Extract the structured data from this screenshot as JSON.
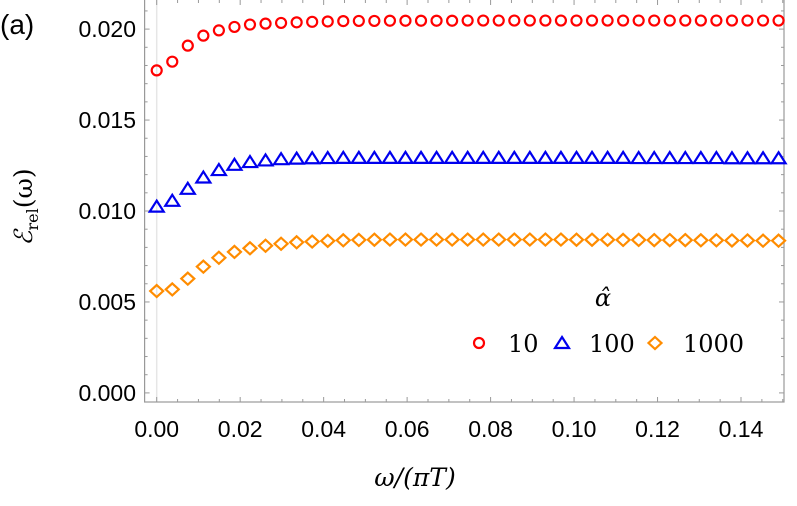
{
  "panel_label": "(a)",
  "chart_data": {
    "type": "scatter",
    "title": "",
    "xlabel": "ω/(πT)",
    "ylabel": "ℰrel(ω)",
    "ylabel_main": "ℰ",
    "ylabel_sub": "rel",
    "ylabel_arg": "(ω)",
    "xlim": [
      -0.0029,
      0.1503
    ],
    "ylim": [
      -0.0005,
      0.0216
    ],
    "grid": false,
    "x_ticks": [
      "0.00",
      "0.02",
      "0.04",
      "0.06",
      "0.08",
      "0.10",
      "0.12",
      "0.14"
    ],
    "y_ticks": [
      "0.000",
      "0.005",
      "0.010",
      "0.015",
      "0.020"
    ],
    "legend": {
      "title": "α̂",
      "placement": "lower-right"
    },
    "x": [
      0,
      0.00373,
      0.00745,
      0.01118,
      0.0149,
      0.01863,
      0.02235,
      0.02608,
      0.0298,
      0.03353,
      0.03725,
      0.04098,
      0.0447,
      0.04843,
      0.05215,
      0.05588,
      0.0596,
      0.06333,
      0.06705,
      0.07078,
      0.0745,
      0.07823,
      0.08195,
      0.08568,
      0.0894,
      0.09313,
      0.09685,
      0.10058,
      0.1043,
      0.10803,
      0.11175,
      0.11548,
      0.1192,
      0.12293,
      0.12665,
      0.13038,
      0.1341,
      0.13783,
      0.14155,
      0.14528,
      0.149
    ],
    "series": [
      {
        "name": "10",
        "marker": "circle",
        "color": "#ff0000",
        "values": [
          0.01773,
          0.01821,
          0.01909,
          0.01964,
          0.01993,
          0.02012,
          0.02025,
          0.0203,
          0.02034,
          0.02037,
          0.0204,
          0.02042,
          0.02044,
          0.02045,
          0.02045,
          0.02046,
          0.02046,
          0.02046,
          0.02046,
          0.02046,
          0.02047,
          0.02047,
          0.02047,
          0.02047,
          0.02047,
          0.02047,
          0.02047,
          0.02047,
          0.02047,
          0.02047,
          0.02047,
          0.02047,
          0.02047,
          0.02047,
          0.02047,
          0.02047,
          0.02047,
          0.02047,
          0.02047,
          0.02047,
          0.02047
        ]
      },
      {
        "name": "100",
        "marker": "triangle",
        "color": "#0000ee",
        "values": [
          0.01024,
          0.01056,
          0.01122,
          0.01184,
          0.01225,
          0.01254,
          0.01269,
          0.01278,
          0.01285,
          0.01288,
          0.0129,
          0.01291,
          0.01292,
          0.01292,
          0.01292,
          0.01292,
          0.01292,
          0.01292,
          0.01292,
          0.01292,
          0.01292,
          0.01292,
          0.01292,
          0.01292,
          0.01292,
          0.01292,
          0.01292,
          0.01292,
          0.01292,
          0.01292,
          0.01292,
          0.01291,
          0.01291,
          0.01291,
          0.01291,
          0.01291,
          0.01291,
          0.0129,
          0.0129,
          0.0129,
          0.0129
        ]
      },
      {
        "name": "1000",
        "marker": "diamond",
        "color": "#ff8c00",
        "values": [
          0.0056,
          0.00569,
          0.00628,
          0.00694,
          0.00743,
          0.00775,
          0.00795,
          0.00809,
          0.0082,
          0.00828,
          0.00832,
          0.00836,
          0.00839,
          0.00841,
          0.00842,
          0.00843,
          0.00843,
          0.00843,
          0.00843,
          0.00843,
          0.00843,
          0.00843,
          0.00843,
          0.00843,
          0.00843,
          0.00843,
          0.00843,
          0.00842,
          0.00842,
          0.00842,
          0.00841,
          0.00841,
          0.0084,
          0.0084,
          0.0084,
          0.00839,
          0.00839,
          0.00838,
          0.00838,
          0.00837,
          0.00837
        ]
      }
    ]
  }
}
